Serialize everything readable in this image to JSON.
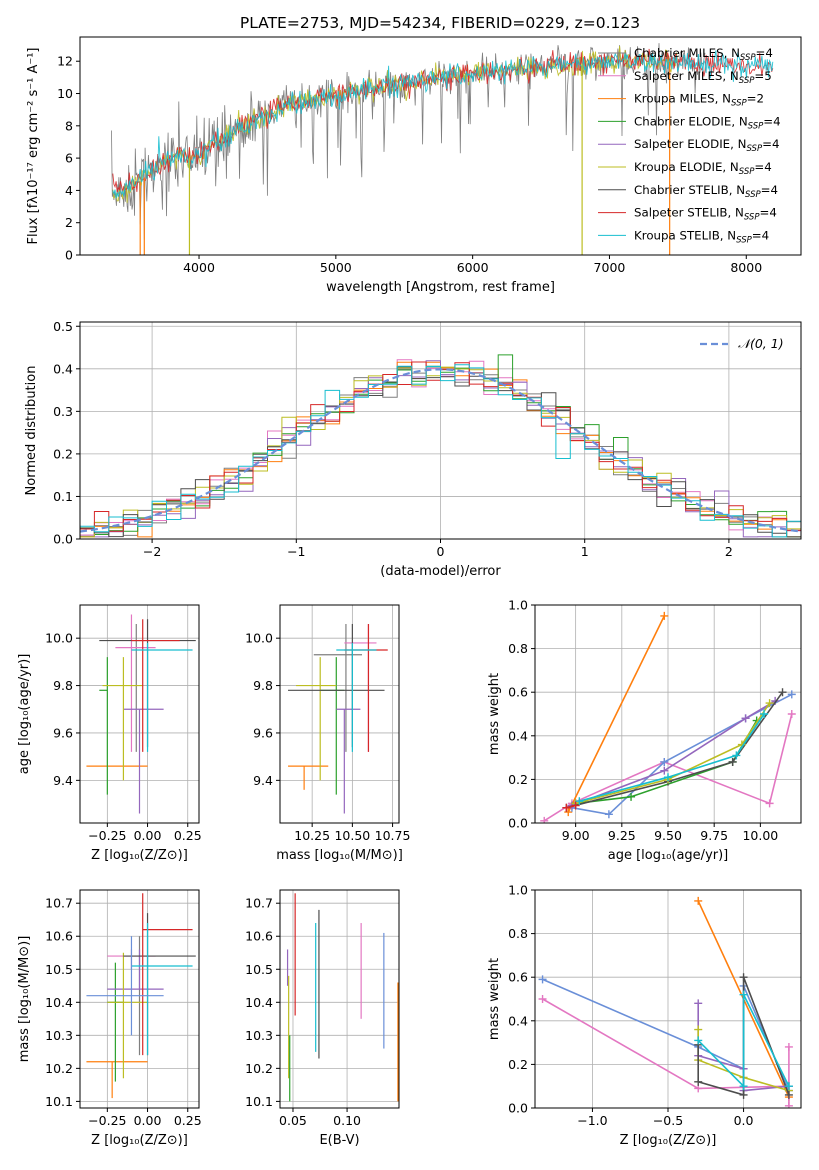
{
  "figure_title": "PLATE=2753, MJD=54234, FIBERID=0229, z=0.123",
  "colors": {
    "chabrier_miles": "#7f7f7f",
    "salpeter_miles": "#e377c2",
    "kroupa_miles": "#ff7f0e",
    "chabrier_elodie": "#2ca02c",
    "salpeter_elodie": "#9467bd",
    "kroupa_elodie": "#bcbd22",
    "chabrier_stelib": "#4d4d4d",
    "salpeter_stelib": "#d62728",
    "kroupa_stelib": "#17becf",
    "gaussian": "#6a8fd8"
  },
  "chart_data": [
    {
      "id": "spectrum",
      "type": "line",
      "xlabel": "wavelength [Angstrom, rest frame]",
      "ylabel": "Flux [fλ10⁻¹⁷ erg cm⁻² s⁻¹ A⁻¹]",
      "xlim": [
        3130,
        8400
      ],
      "ylim": [
        0,
        13.5
      ],
      "xticks": [
        4000,
        5000,
        6000,
        7000,
        8000
      ],
      "yticks": [
        0,
        2,
        4,
        6,
        8,
        10,
        12
      ],
      "grid": false,
      "legend_position": "right",
      "continuum_x": [
        3350,
        3450,
        3550,
        3650,
        3750,
        3850,
        3950,
        4050,
        4150,
        4250,
        4350,
        4450,
        4550,
        4650,
        4750,
        4850,
        4950,
        5050,
        5150,
        5250,
        5350,
        5500,
        5650,
        5800,
        5950,
        6100,
        6300,
        6500,
        6700,
        6900,
        7100,
        7300,
        7500,
        7700,
        7900,
        8150
      ],
      "continuum_y": [
        3.8,
        4.0,
        4.4,
        5.2,
        5.8,
        6.2,
        6.0,
        6.5,
        7.0,
        7.6,
        8.2,
        8.6,
        9.0,
        9.3,
        9.5,
        9.7,
        9.9,
        10.0,
        10.2,
        10.3,
        10.4,
        10.6,
        10.8,
        11.0,
        11.2,
        11.3,
        11.5,
        11.7,
        11.8,
        11.9,
        12.0,
        12.0,
        11.9,
        11.9,
        11.8,
        11.7
      ],
      "series": [
        {
          "name": "Chabrier MILES, N",
          "ssp": "SSP",
          "count": "=4",
          "color_key": "chabrier_miles"
        },
        {
          "name": "Salpeter MILES, N",
          "ssp": "SSP",
          "count": "=5",
          "color_key": "salpeter_miles"
        },
        {
          "name": "Kroupa MILES, N",
          "ssp": "SSP",
          "count": "=2",
          "color_key": "kroupa_miles"
        },
        {
          "name": "Chabrier ELODIE, N",
          "ssp": "SSP",
          "count": "=4",
          "color_key": "chabrier_elodie"
        },
        {
          "name": "Salpeter ELODIE, N",
          "ssp": "SSP",
          "count": "=4",
          "color_key": "salpeter_elodie"
        },
        {
          "name": "Kroupa ELODIE, N",
          "ssp": "SSP",
          "count": "=4",
          "color_key": "kroupa_elodie"
        },
        {
          "name": "Chabrier STELIB, N",
          "ssp": "SSP",
          "count": "=4",
          "color_key": "chabrier_stelib"
        },
        {
          "name": "Salpeter STELIB, N",
          "ssp": "SSP",
          "count": "=4",
          "color_key": "salpeter_stelib"
        },
        {
          "name": "Kroupa STELIB, N",
          "ssp": "SSP",
          "count": "=4",
          "color_key": "kroupa_stelib"
        }
      ]
    },
    {
      "id": "residuals",
      "type": "line",
      "xlabel": "(data-model)/error",
      "ylabel": "Normed distribution",
      "xlim": [
        -2.5,
        2.5
      ],
      "ylim": [
        0,
        0.51
      ],
      "xticks": [
        -2,
        -1,
        0,
        1,
        2
      ],
      "xtick_labels": [
        "−2",
        "−1",
        "0",
        "1",
        "2"
      ],
      "yticks": [
        0,
        0.1,
        0.2,
        0.3,
        0.4,
        0.5
      ],
      "ytick_labels": [
        "0.0",
        "0.1",
        "0.2",
        "0.3",
        "0.4",
        "0.5"
      ],
      "grid": true,
      "legend_position": "top-right",
      "gaussian_label": "𝒩(0, 1)",
      "histogram_bin_width": 0.1,
      "histogram_x_range": [
        -2.5,
        2.5
      ]
    },
    {
      "id": "age_vs_Z",
      "type": "scatter",
      "xlabel": "Z [log₁₀(Z/Z⊙)]",
      "ylabel": "age  [log₁₀(age/yr)]",
      "xlim": [
        -0.42,
        0.32
      ],
      "ylim": [
        9.22,
        10.14
      ],
      "xticks": [
        -0.25,
        0.0,
        0.25
      ],
      "xtick_labels": [
        "−0.25",
        "0.00",
        "0.25"
      ],
      "yticks": [
        9.4,
        9.6,
        9.8,
        10.0
      ],
      "ytick_labels": [
        "9.4",
        "9.6",
        "9.8",
        "10.0"
      ],
      "grid": true,
      "points": [
        {
          "color_key": "chabrier_miles",
          "x": -0.07,
          "xlo": -0.07,
          "xhi": -0.07,
          "y": 9.93,
          "ylo": 9.52,
          "yhi": 10.06
        },
        {
          "color_key": "salpeter_miles",
          "x": -0.1,
          "xlo": -0.2,
          "xhi": 0.05,
          "y": 9.96,
          "ylo": 9.52,
          "yhi": 10.1
        },
        {
          "color_key": "kroupa_miles",
          "x": -0.2,
          "xlo": -0.38,
          "xhi": 0.0,
          "y": 9.46,
          "ylo": 9.46,
          "yhi": 9.46
        },
        {
          "color_key": "chabrier_elodie",
          "x": -0.25,
          "xlo": -0.3,
          "xhi": -0.25,
          "y": 9.78,
          "ylo": 9.34,
          "yhi": 9.92
        },
        {
          "color_key": "salpeter_elodie",
          "x": -0.05,
          "xlo": -0.15,
          "xhi": 0.1,
          "y": 9.7,
          "ylo": 9.26,
          "yhi": 9.7
        },
        {
          "color_key": "kroupa_elodie",
          "x": -0.15,
          "xlo": -0.28,
          "xhi": -0.03,
          "y": 9.8,
          "ylo": 9.4,
          "yhi": 9.92
        },
        {
          "color_key": "chabrier_stelib",
          "x": 0.0,
          "xlo": -0.3,
          "xhi": 0.3,
          "y": 9.99,
          "ylo": 9.54,
          "yhi": 10.08
        },
        {
          "color_key": "salpeter_stelib",
          "x": -0.03,
          "xlo": -0.1,
          "xhi": 0.2,
          "y": 9.99,
          "ylo": 9.52,
          "yhi": 10.08
        },
        {
          "color_key": "kroupa_stelib",
          "x": 0.0,
          "xlo": -0.1,
          "xhi": 0.28,
          "y": 9.95,
          "ylo": 9.52,
          "yhi": 9.98
        }
      ]
    },
    {
      "id": "age_vs_mass",
      "type": "scatter",
      "xlabel": "mass [log₁₀(M/M⊙)]",
      "ylabel": "",
      "xlim": [
        10.05,
        10.79
      ],
      "ylim": [
        9.22,
        10.14
      ],
      "xticks": [
        10.25,
        10.5,
        10.75
      ],
      "xtick_labels": [
        "10.25",
        "10.50",
        "10.75"
      ],
      "yticks": [
        9.4,
        9.6,
        9.8,
        10.0
      ],
      "ytick_labels": [
        "9.4",
        "9.6",
        "9.8",
        "10.0"
      ],
      "grid": true,
      "points": [
        {
          "color_key": "chabrier_miles",
          "x": 10.46,
          "xlo": 10.26,
          "xhi": 10.56,
          "y": 9.93,
          "ylo": 9.52,
          "yhi": 10.06
        },
        {
          "color_key": "salpeter_miles",
          "x": 10.6,
          "xlo": 10.45,
          "xhi": 10.65,
          "y": 9.98,
          "ylo": 9.52,
          "yhi": 10.06
        },
        {
          "color_key": "kroupa_miles",
          "x": 10.2,
          "xlo": 10.1,
          "xhi": 10.35,
          "y": 9.46,
          "ylo": 9.36,
          "yhi": 9.46
        },
        {
          "color_key": "chabrier_elodie",
          "x": 10.4,
          "xlo": 10.3,
          "xhi": 10.45,
          "y": 9.78,
          "ylo": 9.34,
          "yhi": 9.92
        },
        {
          "color_key": "salpeter_elodie",
          "x": 10.45,
          "xlo": 10.4,
          "xhi": 10.55,
          "y": 9.7,
          "ylo": 9.26,
          "yhi": 9.7
        },
        {
          "color_key": "kroupa_elodie",
          "x": 10.3,
          "xlo": 10.15,
          "xhi": 10.4,
          "y": 9.8,
          "ylo": 9.4,
          "yhi": 9.92
        },
        {
          "color_key": "chabrier_stelib",
          "x": 10.5,
          "xlo": 10.1,
          "xhi": 10.7,
          "y": 9.78,
          "ylo": 9.54,
          "yhi": 10.06
        },
        {
          "color_key": "salpeter_stelib",
          "x": 10.6,
          "xlo": 10.45,
          "xhi": 10.72,
          "y": 9.95,
          "ylo": 9.52,
          "yhi": 10.06
        },
        {
          "color_key": "kroupa_stelib",
          "x": 10.5,
          "xlo": 10.4,
          "xhi": 10.65,
          "y": 9.95,
          "ylo": 9.52,
          "yhi": 9.98
        }
      ]
    },
    {
      "id": "mass_weight_vs_age",
      "type": "line",
      "xlabel": "age  [log₁₀(age/yr)]",
      "ylabel": "mass weight",
      "xlim": [
        8.78,
        10.22
      ],
      "ylim": [
        0,
        1.0
      ],
      "xticks": [
        9.0,
        9.25,
        9.5,
        9.75,
        10.0
      ],
      "xtick_labels": [
        "9.00",
        "9.25",
        "9.50",
        "9.75",
        "10.00"
      ],
      "yticks": [
        0,
        0.2,
        0.4,
        0.6,
        0.8,
        1.0
      ],
      "ytick_labels": [
        "0.0",
        "0.2",
        "0.4",
        "0.6",
        "0.8",
        "1.0"
      ],
      "grid": true,
      "series": [
        {
          "color_key": "salpeter_miles",
          "x": [
            8.83,
            8.98,
            9.48,
            10.05,
            10.17
          ],
          "y": [
            0.01,
            0.09,
            0.28,
            0.09,
            0.5
          ]
        },
        {
          "color_key": "kroupa_miles",
          "x": [
            8.96,
            9.48
          ],
          "y": [
            0.05,
            0.95
          ]
        },
        {
          "color_key": "gaussian",
          "x": [
            8.98,
            9.18,
            9.48,
            9.92,
            10.17
          ],
          "y": [
            0.07,
            0.04,
            0.28,
            0.48,
            0.59
          ]
        },
        {
          "color_key": "salpeter_elodie",
          "x": [
            8.98,
            9.48,
            9.92,
            10.08
          ],
          "y": [
            0.08,
            0.24,
            0.48,
            0.56
          ]
        },
        {
          "color_key": "chabrier_elodie",
          "x": [
            9.0,
            9.3,
            9.85,
            9.98
          ],
          "y": [
            0.09,
            0.12,
            0.28,
            0.47
          ]
        },
        {
          "color_key": "chabrier_stelib",
          "x": [
            8.95,
            9.5,
            9.85,
            10.12
          ],
          "y": [
            0.07,
            0.19,
            0.28,
            0.6
          ]
        },
        {
          "color_key": "kroupa_elodie",
          "x": [
            9.0,
            9.5,
            9.9,
            10.05
          ],
          "y": [
            0.09,
            0.2,
            0.36,
            0.55
          ]
        },
        {
          "color_key": "kroupa_stelib",
          "x": [
            9.02,
            9.5,
            9.87,
            10.02
          ],
          "y": [
            0.1,
            0.21,
            0.31,
            0.5
          ]
        },
        {
          "color_key": "salpeter_stelib",
          "x": [
            8.95,
            9.0
          ],
          "y": [
            0.07,
            0.08
          ]
        }
      ]
    },
    {
      "id": "mass_vs_Z",
      "type": "scatter",
      "xlabel": "Z [log₁₀(Z/Z⊙)]",
      "ylabel": "mass [log₁₀(M/M⊙)]",
      "xlim": [
        -0.42,
        0.32
      ],
      "ylim": [
        10.08,
        10.74
      ],
      "xticks": [
        -0.25,
        0.0,
        0.25
      ],
      "xtick_labels": [
        "−0.25",
        "0.00",
        "0.25"
      ],
      "yticks": [
        10.1,
        10.2,
        10.3,
        10.4,
        10.5,
        10.6,
        10.7
      ],
      "ytick_labels": [
        "10.1",
        "10.2",
        "10.3",
        "10.4",
        "10.5",
        "10.6",
        "10.7"
      ],
      "grid": true,
      "points": [
        {
          "color_key": "chabrier_miles",
          "x": -0.05,
          "xlo": -0.05,
          "xhi": -0.05,
          "y": 10.42,
          "ylo": 10.24,
          "yhi": 10.6
        },
        {
          "color_key": "salpeter_miles",
          "x": -0.1,
          "xlo": -0.25,
          "xhi": 0.05,
          "y": 10.54,
          "ylo": 10.5,
          "yhi": 10.56
        },
        {
          "color_key": "kroupa_miles",
          "x": -0.22,
          "xlo": -0.38,
          "xhi": 0.0,
          "y": 10.22,
          "ylo": 10.11,
          "yhi": 10.22
        },
        {
          "color_key": "chabrier_elodie",
          "x": -0.2,
          "xlo": -0.25,
          "xhi": -0.15,
          "y": 10.4,
          "ylo": 10.16,
          "yhi": 10.52
        },
        {
          "color_key": "salpeter_elodie",
          "x": -0.05,
          "xlo": -0.25,
          "xhi": 0.1,
          "y": 10.44,
          "ylo": 10.44,
          "yhi": 10.56
        },
        {
          "color_key": "kroupa_elodie",
          "x": -0.15,
          "xlo": -0.25,
          "xhi": 0.0,
          "y": 10.4,
          "ylo": 10.17,
          "yhi": 10.55
        },
        {
          "color_key": "chabrier_stelib",
          "x": 0.0,
          "xlo": -0.15,
          "xhi": 0.3,
          "y": 10.54,
          "ylo": 10.24,
          "yhi": 10.67
        },
        {
          "color_key": "salpeter_stelib",
          "x": -0.03,
          "xlo": -0.03,
          "xhi": 0.28,
          "y": 10.62,
          "ylo": 10.24,
          "yhi": 10.73
        },
        {
          "color_key": "kroupa_stelib",
          "x": 0.0,
          "xlo": -0.1,
          "xhi": 0.28,
          "y": 10.51,
          "ylo": 10.24,
          "yhi": 10.64
        },
        {
          "color_key": "gaussian",
          "x": -0.1,
          "xlo": -0.38,
          "xhi": 0.1,
          "y": 10.42,
          "ylo": 10.3,
          "yhi": 10.6
        }
      ]
    },
    {
      "id": "mass_vs_EBV",
      "type": "scatter",
      "xlabel": "E(B-V)",
      "ylabel": "",
      "xlim": [
        0.038,
        0.148
      ],
      "ylim": [
        10.08,
        10.74
      ],
      "xticks": [
        0.05,
        0.1
      ],
      "xtick_labels": [
        "0.05",
        "0.10"
      ],
      "yticks": [
        10.1,
        10.2,
        10.3,
        10.4,
        10.5,
        10.6,
        10.7
      ],
      "ytick_labels": [
        "10.1",
        "10.2",
        "10.3",
        "10.4",
        "10.5",
        "10.6",
        "10.7"
      ],
      "grid": true,
      "points": [
        {
          "color_key": "salpeter_elodie",
          "x": 0.045,
          "ylo": 10.45,
          "yhi": 10.56
        },
        {
          "color_key": "kroupa_elodie",
          "x": 0.046,
          "ylo": 10.17,
          "yhi": 10.48
        },
        {
          "color_key": "chabrier_elodie",
          "x": 0.047,
          "ylo": 10.1,
          "yhi": 10.3
        },
        {
          "color_key": "salpeter_stelib",
          "x": 0.052,
          "ylo": 10.36,
          "yhi": 10.73
        },
        {
          "color_key": "kroupa_stelib",
          "x": 0.071,
          "ylo": 10.25,
          "yhi": 10.64
        },
        {
          "color_key": "chabrier_stelib",
          "x": 0.074,
          "ylo": 10.23,
          "yhi": 10.68
        },
        {
          "color_key": "salpeter_miles",
          "x": 0.113,
          "ylo": 10.35,
          "yhi": 10.64
        },
        {
          "color_key": "gaussian",
          "x": 0.134,
          "ylo": 10.26,
          "yhi": 10.61
        },
        {
          "color_key": "kroupa_miles",
          "x": 0.147,
          "ylo": 10.1,
          "yhi": 10.46
        }
      ]
    },
    {
      "id": "mass_weight_vs_Z",
      "type": "line",
      "xlabel": "Z [log₁₀(Z/Z⊙)]",
      "ylabel": "mass weight",
      "xlim": [
        -1.38,
        0.38
      ],
      "ylim": [
        0,
        1.0
      ],
      "xticks": [
        -1.0,
        -0.5,
        0.0
      ],
      "xtick_labels": [
        "−1.0",
        "−0.5",
        "0.0"
      ],
      "yticks": [
        0,
        0.2,
        0.4,
        0.6,
        0.8,
        1.0
      ],
      "ytick_labels": [
        "0.0",
        "0.2",
        "0.4",
        "0.6",
        "0.8",
        "1.0"
      ],
      "grid": true,
      "series": [
        {
          "color_key": "kroupa_miles",
          "x": [
            -0.3,
            0.3
          ],
          "y": [
            0.95,
            0.05
          ]
        },
        {
          "color_key": "gaussian",
          "x": [
            -1.33,
            -0.3,
            0.0,
            0.0,
            0.3
          ],
          "y": [
            0.59,
            0.28,
            0.18,
            0.56,
            0.08
          ]
        },
        {
          "color_key": "salpeter_miles",
          "x": [
            -1.33,
            -0.3,
            0.3,
            0.3,
            0.3
          ],
          "y": [
            0.5,
            0.09,
            0.1,
            0.28,
            0.01
          ]
        },
        {
          "color_key": "salpeter_elodie",
          "x": [
            -0.3,
            -0.3,
            0.0,
            0.0,
            0.3
          ],
          "y": [
            0.48,
            0.24,
            0.18,
            0.08,
            0.1
          ]
        },
        {
          "color_key": "kroupa_elodie",
          "x": [
            -0.3,
            -0.3,
            0.0,
            0.3
          ],
          "y": [
            0.36,
            0.22,
            0.14,
            0.08
          ]
        },
        {
          "color_key": "chabrier_stelib",
          "x": [
            -0.3,
            -0.3,
            0.0,
            0.0,
            0.3
          ],
          "y": [
            0.29,
            0.12,
            0.06,
            0.6,
            0.06
          ]
        },
        {
          "color_key": "kroupa_stelib",
          "x": [
            -0.3,
            0.0,
            0.0,
            0.3
          ],
          "y": [
            0.31,
            0.1,
            0.52,
            0.1
          ]
        }
      ]
    }
  ]
}
